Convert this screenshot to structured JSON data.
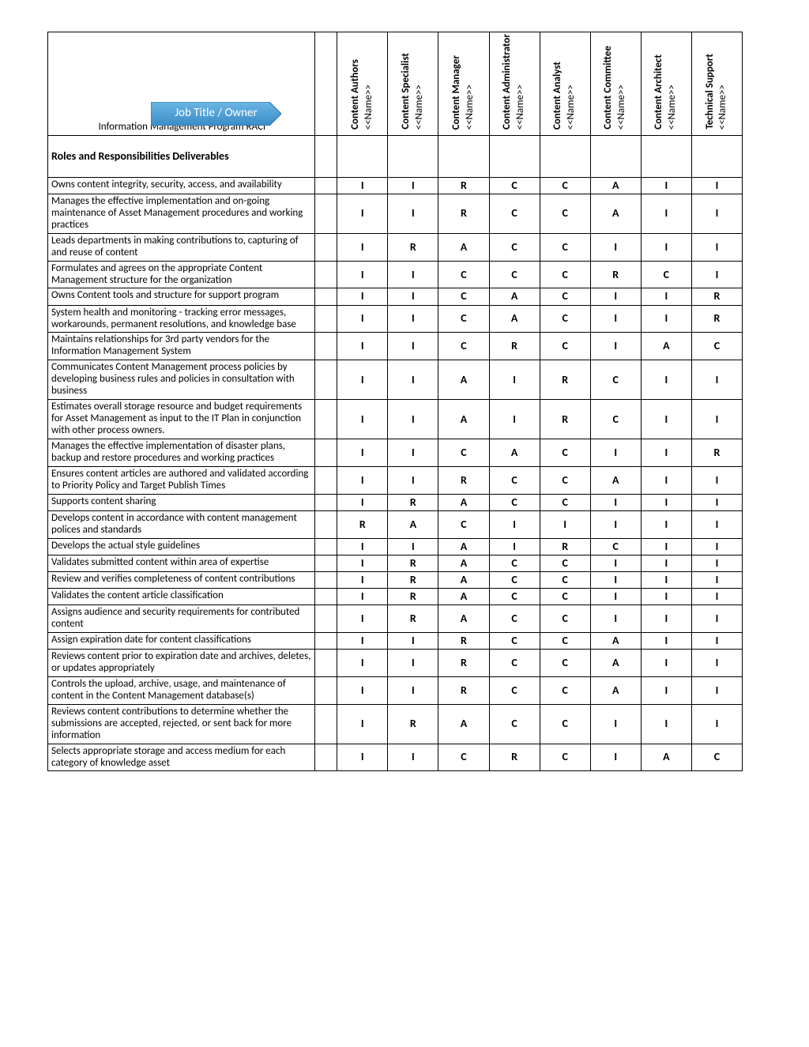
{
  "title": "Information Management Program RACI",
  "job_title_label": "Job Title / Owner",
  "section_header": "Roles and Responsibilities Deliverables",
  "name_placeholder": "<<Name>>",
  "chevron": {
    "fill_top": "#5aa7d8",
    "fill_bottom": "#3a8cc9",
    "outline": "#2f6fa3",
    "text_color": "#ffffff"
  },
  "roles": [
    "Content Authors",
    "Content Specialist",
    "Content Manager",
    "Content Administrator",
    "Content Analyst",
    "Content Committee",
    "Content Architect",
    "Technical Support"
  ],
  "rows": [
    {
      "desc": "Owns content integrity, security, access, and availability",
      "v": [
        "I",
        "I",
        "R",
        "C",
        "C",
        "A",
        "I",
        "I"
      ]
    },
    {
      "desc": "Manages the effective implementation and on-going maintenance of  Asset Management procedures and working practices",
      "v": [
        "I",
        "I",
        "R",
        "C",
        "C",
        "A",
        "I",
        "I"
      ]
    },
    {
      "desc": "Leads departments in making contributions to, capturing of and reuse of content",
      "v": [
        "I",
        "R",
        "A",
        "C",
        "C",
        "I",
        "I",
        "I"
      ]
    },
    {
      "desc": "Formulates and agrees on the appropriate Content Management structure for the organization",
      "v": [
        "I",
        "I",
        "C",
        "C",
        "C",
        "R",
        "C",
        "I"
      ]
    },
    {
      "desc": "Owns Content tools and structure for support program",
      "v": [
        "I",
        "I",
        "C",
        "A",
        "C",
        "I",
        "I",
        "R"
      ]
    },
    {
      "desc": "System health and monitoring - tracking error messages, workarounds, permanent resolutions, and knowledge base",
      "v": [
        "I",
        "I",
        "C",
        "A",
        "C",
        "I",
        "I",
        "R"
      ]
    },
    {
      "desc": "Maintains relationships for 3rd party vendors for the Information Management System",
      "v": [
        "I",
        "I",
        "C",
        "R",
        "C",
        "I",
        "A",
        "C"
      ]
    },
    {
      "desc": "Communicates Content Management process policies by developing business rules and policies in consultation with business",
      "v": [
        "I",
        "I",
        "A",
        "I",
        "R",
        "C",
        "I",
        "I"
      ]
    },
    {
      "desc": "Estimates overall storage resource and budget requirements for Asset Management as input to the IT Plan in conjunction with other process owners.",
      "v": [
        "I",
        "I",
        "A",
        "I",
        "R",
        "C",
        "I",
        "I"
      ]
    },
    {
      "desc": "Manages the effective implementation of disaster plans, backup and restore procedures and working practices",
      "v": [
        "I",
        "I",
        "C",
        "A",
        "C",
        "I",
        "I",
        "R"
      ]
    },
    {
      "desc": "Ensures content articles are authored and validated according to Priority Policy and Target Publish Times",
      "v": [
        "I",
        "I",
        "R",
        "C",
        "C",
        "A",
        "I",
        "I"
      ]
    },
    {
      "desc": "Supports content sharing",
      "v": [
        "I",
        "R",
        "A",
        "C",
        "C",
        "I",
        "I",
        "I"
      ]
    },
    {
      "desc": "Develops content in accordance with content management polices and standards",
      "v": [
        "R",
        "A",
        "C",
        "I",
        "I",
        "I",
        "I",
        "I"
      ]
    },
    {
      "desc": "Develops the actual style guidelines",
      "v": [
        "I",
        "I",
        "A",
        "I",
        "R",
        "C",
        "I",
        "I"
      ]
    },
    {
      "desc": "Validates submitted content within area of expertise",
      "v": [
        "I",
        "R",
        "A",
        "C",
        "C",
        "I",
        "I",
        "I"
      ]
    },
    {
      "desc": "Review and verifies completeness of content contributions",
      "v": [
        "I",
        "R",
        "A",
        "C",
        "C",
        "I",
        "I",
        "I"
      ]
    },
    {
      "desc": "Validates the content article classification",
      "v": [
        "I",
        "R",
        "A",
        "C",
        "C",
        "I",
        "I",
        "I"
      ]
    },
    {
      "desc": "Assigns audience and security requirements for contributed content",
      "v": [
        "I",
        "R",
        "A",
        "C",
        "C",
        "I",
        "I",
        "I"
      ]
    },
    {
      "desc": "Assign expiration date for content classifications",
      "v": [
        "I",
        "I",
        "R",
        "C",
        "C",
        "A",
        "I",
        "I"
      ]
    },
    {
      "desc": "Reviews content prior to expiration date and archives, deletes, or updates appropriately",
      "v": [
        "I",
        "I",
        "R",
        "C",
        "C",
        "A",
        "I",
        "I"
      ]
    },
    {
      "desc": "Controls the upload, archive, usage, and maintenance of content in the Content Management database(s)",
      "v": [
        "I",
        "I",
        "R",
        "C",
        "C",
        "A",
        "I",
        "I"
      ]
    },
    {
      "desc": "Reviews content contributions to determine whether the submissions are accepted, rejected, or sent back for more information",
      "v": [
        "I",
        "R",
        "A",
        "C",
        "C",
        "I",
        "I",
        "I"
      ]
    },
    {
      "desc": "Selects appropriate storage and access medium for each category of knowledge asset",
      "v": [
        "I",
        "I",
        "C",
        "R",
        "C",
        "I",
        "A",
        "C"
      ]
    }
  ]
}
